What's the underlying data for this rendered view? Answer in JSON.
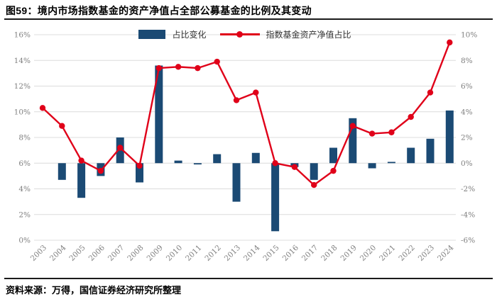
{
  "title": "图59：境内市场指数基金的资产净值占全部公募基金的比例及其变动",
  "footer": "资料来源：万得，国信证券经济研究所整理",
  "colors": {
    "bar": "#1B4A74",
    "line": "#E00019",
    "grid": "#DCDCDC",
    "axis_text": "#808080",
    "title_text": "#000000"
  },
  "chart_data": {
    "type": "bar",
    "subtype": "bar-line combo, dual axis",
    "categories": [
      "2003",
      "2004",
      "2005",
      "2006",
      "2007",
      "2008",
      "2009",
      "2010",
      "2011",
      "2012",
      "2013",
      "2014",
      "2015",
      "2016",
      "2017",
      "2018",
      "2019",
      "2020",
      "2021",
      "2022",
      "2023",
      "2024"
    ],
    "series": [
      {
        "name": "占比变化",
        "type": "bar",
        "axis": "right",
        "unit": "pp",
        "values": [
          null,
          -1.3,
          -2.7,
          -1.0,
          2.0,
          -1.5,
          7.6,
          0.2,
          -0.1,
          0.7,
          -3.0,
          0.8,
          -5.3,
          -0.3,
          -1.3,
          1.2,
          3.5,
          -0.4,
          0.1,
          1.2,
          1.9,
          4.1
        ]
      },
      {
        "name": "指数基金资产净值占比",
        "type": "line",
        "axis": "left",
        "unit": "%",
        "values": [
          10.3,
          8.9,
          6.2,
          5.4,
          7.2,
          5.8,
          13.4,
          13.5,
          13.4,
          13.9,
          10.9,
          11.5,
          6.0,
          5.7,
          4.3,
          5.4,
          8.9,
          8.3,
          8.4,
          9.6,
          11.5,
          15.4
        ]
      }
    ],
    "left_axis": {
      "min": 0,
      "max": 16,
      "step": 2,
      "ticks": [
        "0%",
        "2%",
        "4%",
        "6%",
        "8%",
        "10%",
        "12%",
        "14%",
        "16%"
      ]
    },
    "right_axis": {
      "min": -6,
      "max": 10,
      "step": 2,
      "ticks": [
        "-6%",
        "-4%",
        "-2%",
        "0%",
        "2%",
        "4%",
        "6%",
        "8%",
        "10%"
      ]
    },
    "grid": true,
    "legend_position": "top-center"
  }
}
